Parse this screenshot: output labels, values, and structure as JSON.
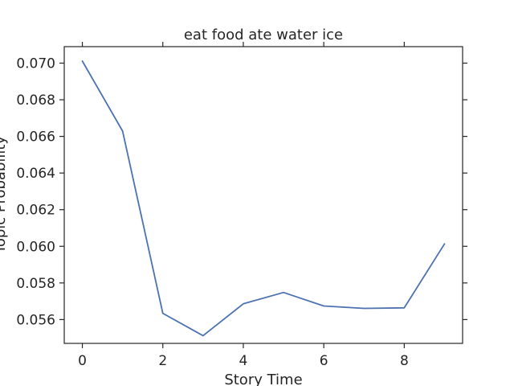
{
  "chart_data": {
    "type": "line",
    "title": "eat food ate water ice",
    "xlabel": "Story Time",
    "ylabel": "Topic Probability",
    "x": [
      0,
      1,
      2,
      3,
      4,
      5,
      6,
      7,
      8,
      9
    ],
    "series": [
      {
        "values": [
          0.07011,
          0.06629,
          0.05634,
          0.05512,
          0.05686,
          0.05748,
          0.05674,
          0.05661,
          0.05664,
          0.06013
        ],
        "color": "#4c72b0"
      }
    ],
    "xlim": [
      -0.45,
      9.45
    ],
    "ylim": [
      0.0547,
      0.0709
    ],
    "xticks": [
      0,
      2,
      4,
      6,
      8
    ],
    "yticks": [
      0.056,
      0.058,
      0.06,
      0.062,
      0.064,
      0.066,
      0.068,
      0.07
    ],
    "xtick_labels": [
      "0",
      "2",
      "4",
      "6",
      "8"
    ],
    "ytick_labels": [
      "0.056",
      "0.058",
      "0.060",
      "0.062",
      "0.064",
      "0.066",
      "0.068",
      "0.070"
    ],
    "grid": false,
    "legend": false
  }
}
